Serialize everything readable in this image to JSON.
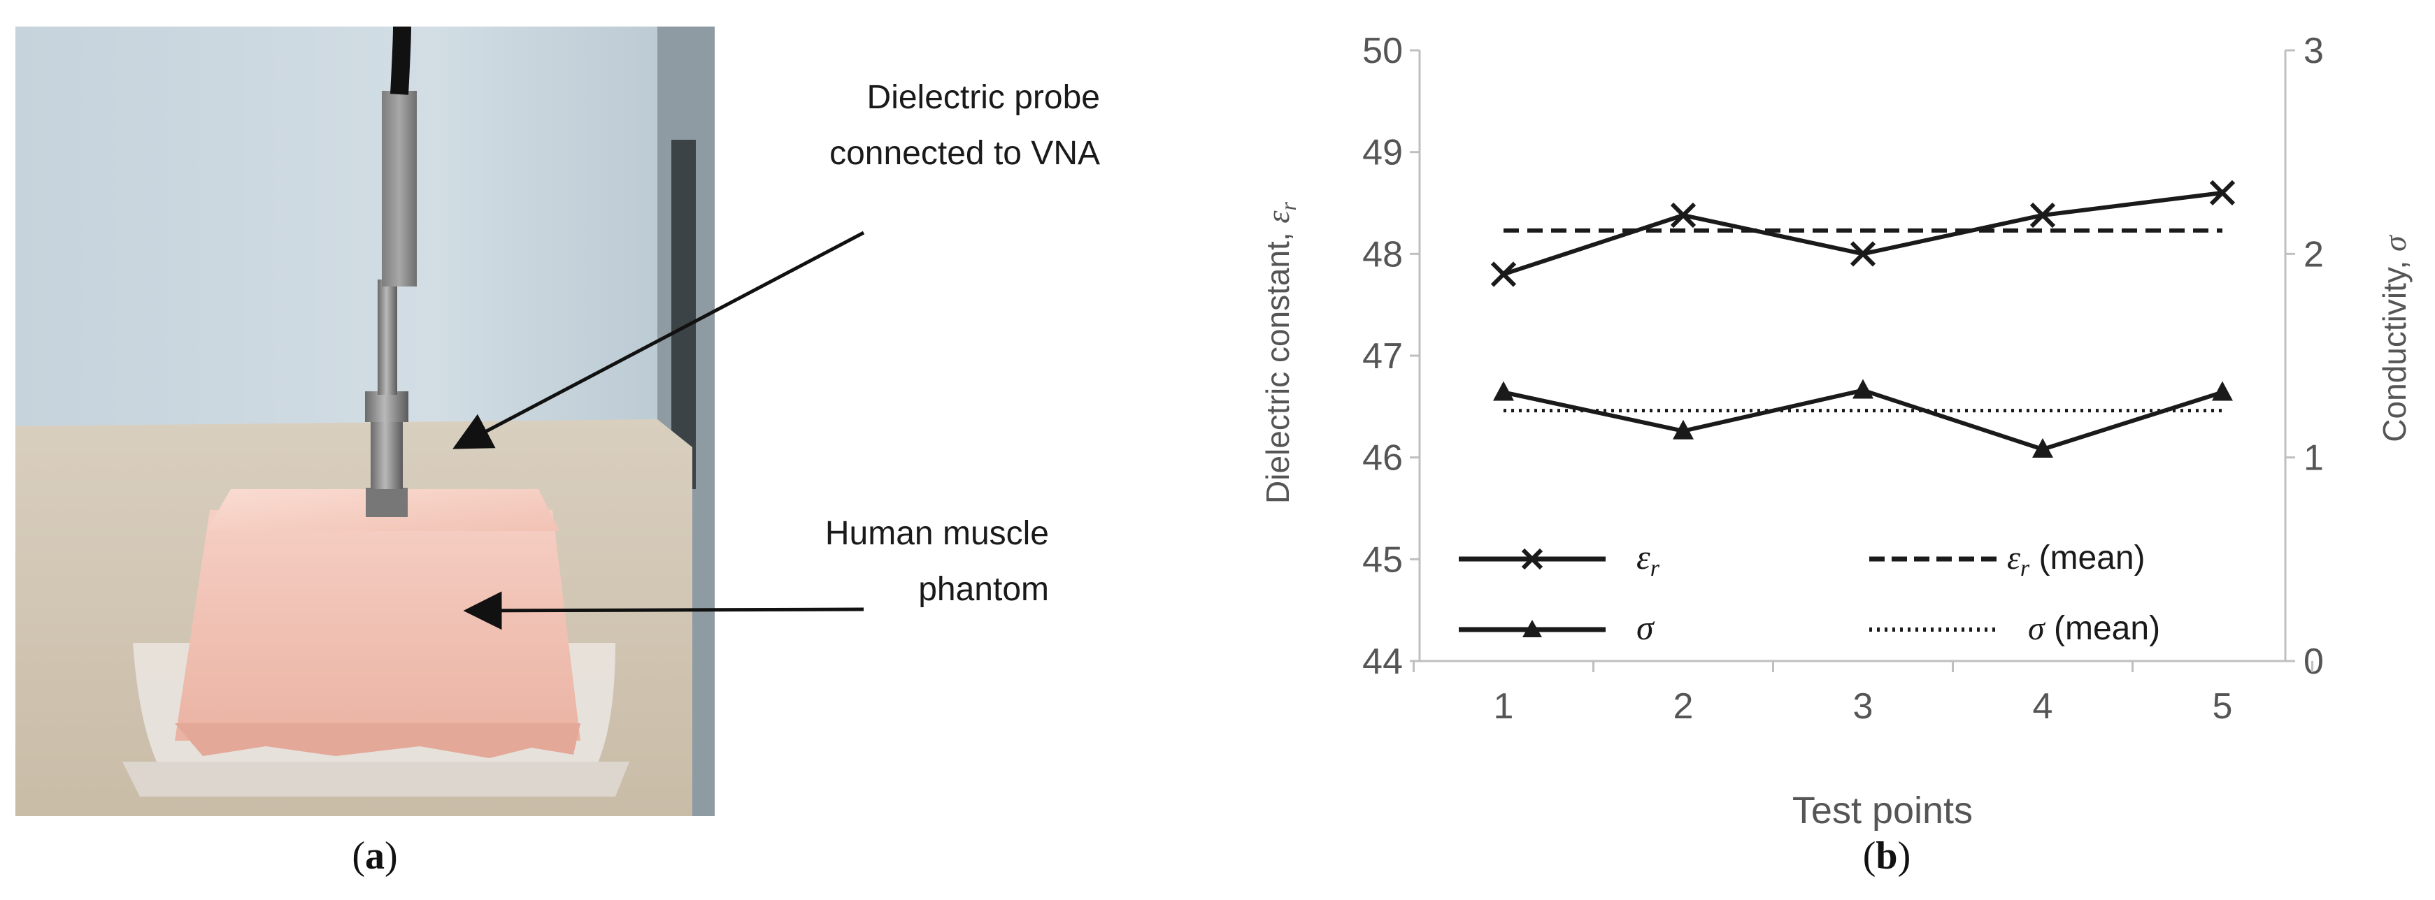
{
  "photo": {
    "annotation_probe_line1": "Dielectric probe",
    "annotation_probe_line2": "connected to VNA",
    "annotation_phantom_line1": "Human muscle",
    "annotation_phantom_line2": "phantom",
    "panel_label_prefix": "(",
    "panel_label_letter": "a",
    "panel_label_suffix": ")"
  },
  "chart_panel": {
    "panel_label_prefix": "(",
    "panel_label_letter": "b",
    "panel_label_suffix": ")"
  },
  "colors": {
    "series": "#1a1a1a",
    "axis": "#bfbfbf",
    "tick_text": "#555555"
  },
  "chart_data": {
    "type": "line",
    "title": "",
    "categories": [
      "1",
      "2",
      "3",
      "4",
      "5"
    ],
    "xlabel": "Test points",
    "ylabel": "Dielectric constant, ",
    "ylabel_symbol": "ε",
    "ylabel_sub": "r",
    "y2label": "Conductivity, ",
    "y2label_symbol": "σ",
    "ylim": [
      44,
      50
    ],
    "y2lim": [
      0,
      3
    ],
    "yticks": [
      "44",
      "45",
      "46",
      "47",
      "48",
      "49",
      "50"
    ],
    "y2ticks": [
      "0",
      "1",
      "2",
      "3"
    ],
    "grid": false,
    "legend_position": "bottom-inside",
    "series": [
      {
        "name": "εr",
        "symbol": "ε",
        "sub": "r",
        "suffix": "",
        "axis": "left",
        "style": "solid",
        "marker": "x",
        "values": [
          47.8,
          48.38,
          48.0,
          48.38,
          48.6
        ]
      },
      {
        "name": "σ",
        "symbol": "σ",
        "sub": "",
        "suffix": "",
        "axis": "right",
        "style": "solid",
        "marker": "triangle",
        "values": [
          1.32,
          1.13,
          1.33,
          1.04,
          1.32
        ]
      },
      {
        "name": "εr (mean)",
        "symbol": "ε",
        "sub": "r",
        "suffix": " (mean)",
        "axis": "left",
        "style": "dashed",
        "marker": "none",
        "values": [
          48.23,
          48.23,
          48.23,
          48.23,
          48.23
        ]
      },
      {
        "name": "σ (mean)",
        "symbol": "σ",
        "sub": "",
        "suffix": " (mean)",
        "axis": "right",
        "style": "dotted",
        "marker": "none",
        "values": [
          1.23,
          1.23,
          1.23,
          1.23,
          1.23
        ]
      }
    ]
  }
}
